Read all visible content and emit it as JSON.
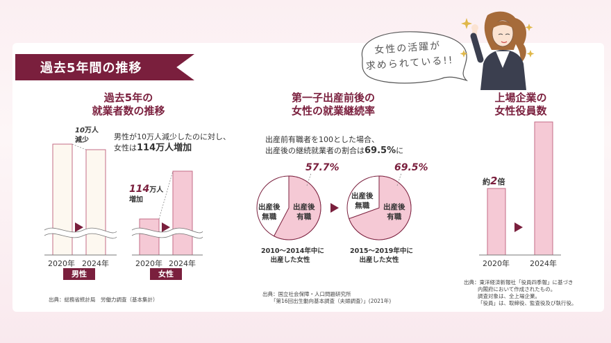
{
  "banner": {
    "title": "過去5年間の推移"
  },
  "bubble": {
    "line1": "女性の活躍が",
    "line2": "求められている!!"
  },
  "colors": {
    "accent": "#7a1f3d",
    "pink_fill": "#f5c9d5",
    "cream_fill": "#fdf8f0",
    "bar_stroke": "#c36b86"
  },
  "chart_data": [
    {
      "type": "bar",
      "title": "過去5年の\n就業者数の推移",
      "groups": [
        {
          "name": "男性",
          "categories": [
            "2020年",
            "2024年"
          ],
          "change_label_big": "10",
          "change_label_unit": "万人",
          "change_label_line2": "減少"
        },
        {
          "name": "女性",
          "categories": [
            "2020年",
            "2024年"
          ],
          "change_label_big": "114",
          "change_label_unit": "万人",
          "change_label_line2": "増加"
        }
      ],
      "annotation_line1": "男性が10万人減少したのに対し、",
      "annotation_line2_prefix": "女性は",
      "annotation_line2_bold": "114万人増加",
      "source": "出典：総務省統計局　労働力調査（基本集計）"
    },
    {
      "type": "pie",
      "title": "第一子出産前後の\n女性の就業継続率",
      "annotation_line1": "出産前有職者を100とした場合、",
      "annotation_line2_prefix": "出産後の継続就業者の割合は",
      "annotation_line2_bold": "69.5%",
      "annotation_line2_suffix": "に",
      "pies": [
        {
          "period_line1": "2010〜2014年中に",
          "period_line2": "出産した女性",
          "value_label": "57.7%",
          "employed_pct": 57.7,
          "employed_label_1": "出産後",
          "employed_label_2": "有職",
          "unemployed_label_1": "出産後",
          "unemployed_label_2": "無職"
        },
        {
          "period_line1": "2015〜2019年中に",
          "period_line2": "出産した女性",
          "value_label": "69.5%",
          "employed_pct": 69.5,
          "employed_label_1": "出産後",
          "employed_label_2": "有職",
          "unemployed_label_1": "出産後",
          "unemployed_label_2": "無職"
        }
      ],
      "source_line1": "出典：国立社会保障・人口問題研究所",
      "source_line2": "「第16回出生動向基本調査（夫婦調査）」(2021年)"
    },
    {
      "type": "bar",
      "title": "上場企業の\n女性役員数",
      "categories": [
        "2020年",
        "2024年"
      ],
      "values": [
        1,
        2
      ],
      "label_prefix": "約",
      "label_big": "2",
      "label_suffix": "倍",
      "source_lines": [
        "出典：東洋経済新報社「役員四季報」に基づき",
        "内閣府において作成されたもの。",
        "調査対象は、全上場企業。",
        "「役員」は、取締役、監査役及び執行役。"
      ]
    }
  ]
}
